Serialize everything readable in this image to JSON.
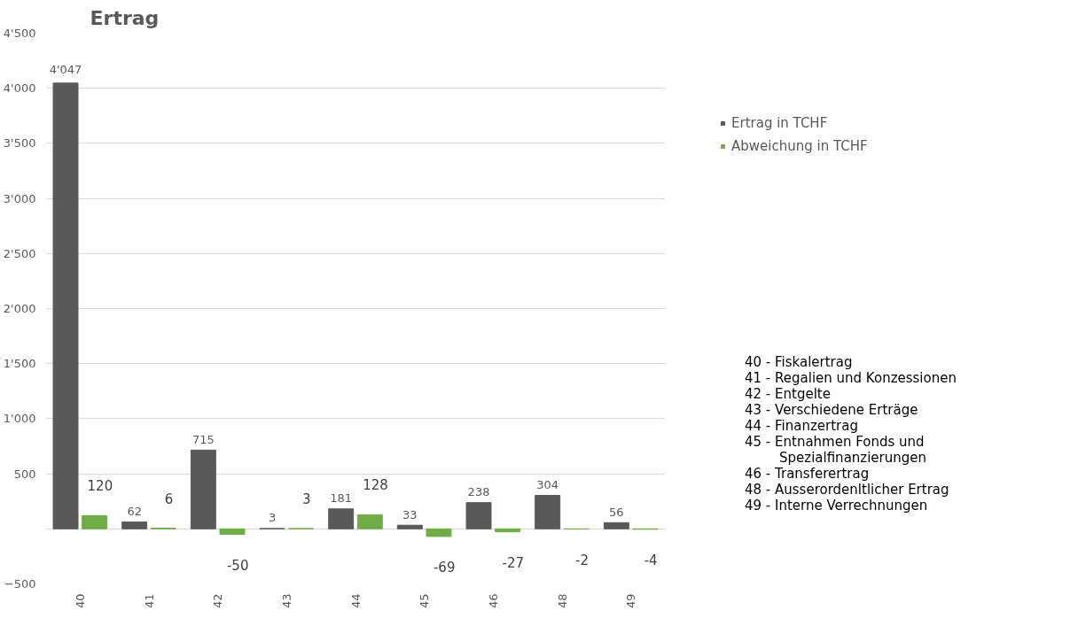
{
  "chart_data": {
    "type": "bar",
    "title": "Ertrag",
    "categories": [
      "40",
      "41",
      "42",
      "43",
      "44",
      "45",
      "46",
      "48",
      "49"
    ],
    "series": [
      {
        "name": "Ertrag in TCHF",
        "color": "#595959",
        "values": [
          4047,
          62,
          715,
          3,
          181,
          33,
          238,
          304,
          56
        ],
        "value_labels": [
          "4'047",
          "62",
          "715",
          "3",
          "181",
          "33",
          "238",
          "304",
          "56"
        ]
      },
      {
        "name": "Abweichung in TCHF",
        "color": "#70ad47",
        "values": [
          120,
          6,
          -50,
          3,
          128,
          -69,
          -27,
          -2,
          -4
        ],
        "value_labels": [
          "120",
          "6",
          "-50",
          "3",
          "128",
          "-69",
          "-27",
          "-2",
          "-4"
        ]
      }
    ],
    "ylim": [
      -500,
      4500
    ],
    "yticks": [
      -500,
      {
        "value": 0,
        "label": null
      },
      500,
      {
        "value": 1000,
        "label": "1'000"
      },
      {
        "value": 1500,
        "label": "1'500"
      },
      {
        "value": 2000,
        "label": "2'000"
      },
      {
        "value": 2500,
        "label": "2'500"
      },
      {
        "value": 3000,
        "label": "3'000"
      },
      {
        "value": 3500,
        "label": "3'500"
      },
      {
        "value": 4000,
        "label": "4'000"
      },
      {
        "value": 4500,
        "label": "4'500"
      }
    ],
    "grid": "y",
    "legend": "right",
    "annotations": [
      "40 - Fiskalertrag",
      "41 - Regalien und Konzessionen",
      "42 - Entgelte",
      "43 - Verschiedene Erträge",
      "44 - Finanzertrag",
      "45 - Entnahmen Fonds und Spezialfinanzierungen",
      "46 - Transferertrag",
      "48 - Ausserordenltlicher Ertrag",
      "49 - Interne Verrechnungen"
    ]
  }
}
